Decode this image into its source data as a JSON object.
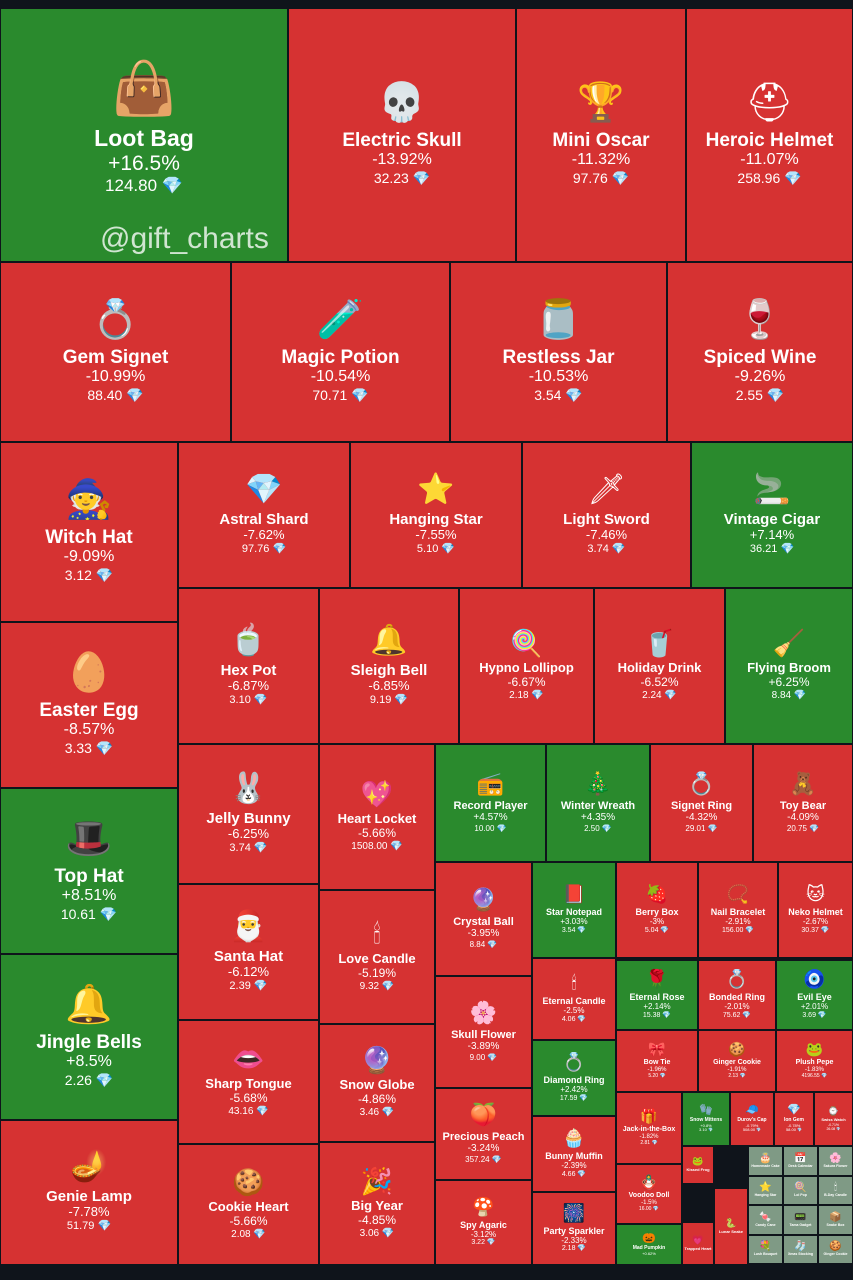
{
  "watermark": "@gift_charts",
  "currency_icon": "💎",
  "colors": {
    "up": "#2a8a2d",
    "down": "#d63232",
    "small": "#7f9a85",
    "background": "#0f141b"
  },
  "chart_data": {
    "type": "treemap",
    "items": [
      {
        "name": "Loot Bag",
        "change": "+16.5%",
        "price": "124.80",
        "icon": "👜"
      },
      {
        "name": "Electric Skull",
        "change": "-13.92%",
        "price": "32.23",
        "icon": "💀"
      },
      {
        "name": "Mini Oscar",
        "change": "-11.32%",
        "price": "97.76",
        "icon": "🏆"
      },
      {
        "name": "Heroic Helmet",
        "change": "-11.07%",
        "price": "258.96",
        "icon": "⛑"
      },
      {
        "name": "Gem Signet",
        "change": "-10.99%",
        "price": "88.40",
        "icon": "💍"
      },
      {
        "name": "Magic Potion",
        "change": "-10.54%",
        "price": "70.71",
        "icon": "🧪"
      },
      {
        "name": "Restless Jar",
        "change": "-10.53%",
        "price": "3.54",
        "icon": "🫙"
      },
      {
        "name": "Spiced Wine",
        "change": "-9.26%",
        "price": "2.55",
        "icon": "🍷"
      },
      {
        "name": "Witch Hat",
        "change": "-9.09%",
        "price": "3.12",
        "icon": "🧙"
      },
      {
        "name": "Astral Shard",
        "change": "-7.62%",
        "price": "97.76",
        "icon": "💎"
      },
      {
        "name": "Hanging Star",
        "change": "-7.55%",
        "price": "5.10",
        "icon": "⭐"
      },
      {
        "name": "Light Sword",
        "change": "-7.46%",
        "price": "3.74",
        "icon": "🗡"
      },
      {
        "name": "Vintage Cigar",
        "change": "+7.14%",
        "price": "36.21",
        "icon": "🚬"
      },
      {
        "name": "Easter Egg",
        "change": "-8.57%",
        "price": "3.33",
        "icon": "🥚"
      },
      {
        "name": "Hex Pot",
        "change": "-6.87%",
        "price": "3.10",
        "icon": "🍵"
      },
      {
        "name": "Sleigh Bell",
        "change": "-6.85%",
        "price": "9.19",
        "icon": "🔔"
      },
      {
        "name": "Hypno Lollipop",
        "change": "-6.67%",
        "price": "2.18",
        "icon": "🍭"
      },
      {
        "name": "Holiday Drink",
        "change": "-6.52%",
        "price": "2.24",
        "icon": "🥤"
      },
      {
        "name": "Flying Broom",
        "change": "+6.25%",
        "price": "8.84",
        "icon": "🧹"
      },
      {
        "name": "Top Hat",
        "change": "+8.51%",
        "price": "10.61",
        "icon": "🎩"
      },
      {
        "name": "Jelly Bunny",
        "change": "-6.25%",
        "price": "3.74",
        "icon": "🐰"
      },
      {
        "name": "Heart Locket",
        "change": "-5.66%",
        "price": "1508.00",
        "icon": "💖"
      },
      {
        "name": "Record Player",
        "change": "+4.57%",
        "price": "10.00",
        "icon": "📻"
      },
      {
        "name": "Winter Wreath",
        "change": "+4.35%",
        "price": "2.50",
        "icon": "🎄"
      },
      {
        "name": "Signet Ring",
        "change": "-4.32%",
        "price": "29.01",
        "icon": "💍"
      },
      {
        "name": "Toy Bear",
        "change": "-4.09%",
        "price": "20.75",
        "icon": "🧸"
      },
      {
        "name": "Jingle Bells",
        "change": "+8.5%",
        "price": "2.26",
        "icon": "🔔"
      },
      {
        "name": "Santa Hat",
        "change": "-6.12%",
        "price": "2.39",
        "icon": "🎅"
      },
      {
        "name": "Love Candle",
        "change": "-5.19%",
        "price": "9.32",
        "icon": "🕯"
      },
      {
        "name": "Crystal Ball",
        "change": "-3.95%",
        "price": "8.84",
        "icon": "🔮"
      },
      {
        "name": "Star Notepad",
        "change": "+3.03%",
        "price": "3.54",
        "icon": "📕"
      },
      {
        "name": "Berry Box",
        "change": "-3%",
        "price": "5.04",
        "icon": "🍓"
      },
      {
        "name": "Nail Bracelet",
        "change": "-2.91%",
        "price": "156.00",
        "icon": "📿"
      },
      {
        "name": "Neko Helmet",
        "change": "-2.67%",
        "price": "30.37",
        "icon": "🐱"
      },
      {
        "name": "Eternal Candle",
        "change": "-2.5%",
        "price": "4.06",
        "icon": "🕯"
      },
      {
        "name": "Eternal Rose",
        "change": "+2.14%",
        "price": "15.38",
        "icon": "🌹"
      },
      {
        "name": "Bonded Ring",
        "change": "-2.01%",
        "price": "75.62",
        "icon": "💍"
      },
      {
        "name": "Evil Eye",
        "change": "+2.01%",
        "price": "3.69",
        "icon": "🧿"
      },
      {
        "name": "Skull Flower",
        "change": "-3.89%",
        "price": "9.00",
        "icon": "🌸"
      },
      {
        "name": "Diamond Ring",
        "change": "+2.42%",
        "price": "17.59",
        "icon": "💍"
      },
      {
        "name": "Bow Tie",
        "change": "-1.96%",
        "price": "5.20",
        "icon": "🎀"
      },
      {
        "name": "Ginger Cookie",
        "change": "-1.91%",
        "price": "2.13",
        "icon": "🍪"
      },
      {
        "name": "Plush Pepe",
        "change": "-1.83%",
        "price": "4196.55",
        "icon": "🐸"
      },
      {
        "name": "Sharp Tongue",
        "change": "-5.68%",
        "price": "43.16",
        "icon": "👄"
      },
      {
        "name": "Snow Globe",
        "change": "-4.86%",
        "price": "3.46",
        "icon": "🔮"
      },
      {
        "name": "Precious Peach",
        "change": "-3.24%",
        "price": "357.24",
        "icon": "🍑"
      },
      {
        "name": "Jack-in-the-Box",
        "change": "-1.82%",
        "price": "2.81",
        "icon": "🎁"
      },
      {
        "name": "Snow Mittens",
        "change": "+0.8%",
        "price": "3.10",
        "icon": "🧤"
      },
      {
        "name": "Durov's Cap",
        "change": "-0.79%",
        "price": "508.00",
        "icon": "🧢"
      },
      {
        "name": "Ion Gem",
        "change": "-0.78%",
        "price": "58.00",
        "icon": "💎"
      },
      {
        "name": "Swiss Watch",
        "change": "-0.71%",
        "price": "26.08",
        "icon": "⌚"
      },
      {
        "name": "Genie Lamp",
        "change": "-7.78%",
        "price": "51.79",
        "icon": "🪔"
      },
      {
        "name": "Cookie Heart",
        "change": "-5.66%",
        "price": "2.08",
        "icon": "🍪"
      },
      {
        "name": "Big Year",
        "change": "-4.85%",
        "price": "3.06",
        "icon": "🎉"
      },
      {
        "name": "Bunny Muffin",
        "change": "-2.39%",
        "price": "4.66",
        "icon": "🧁"
      },
      {
        "name": "Voodoo Doll",
        "change": "-1.5%",
        "price": "16.00",
        "icon": "🪆"
      },
      {
        "name": "Kissed Frog",
        "change": "",
        "price": "",
        "icon": "🐸"
      },
      {
        "name": "Spy Agaric",
        "change": "-3.12%",
        "price": "3.22",
        "icon": "🍄"
      },
      {
        "name": "Party Sparkler",
        "change": "-2.33%",
        "price": "2.18",
        "icon": "🎆"
      },
      {
        "name": "Mad Pumpkin",
        "change": "+0.62%",
        "price": "",
        "icon": "🎃"
      },
      {
        "name": "Trapped Heart",
        "change": "",
        "price": "",
        "icon": "💗"
      },
      {
        "name": "Lunar Snake",
        "change": "",
        "price": "",
        "icon": "🐍"
      }
    ],
    "small_tiles": [
      {
        "name": "Homemade Cake",
        "icon": "🎂"
      },
      {
        "name": "Desk Calendar",
        "icon": "📅"
      },
      {
        "name": "Sakura Flower",
        "icon": "🌸"
      },
      {
        "name": "Hanging Star",
        "icon": "⭐"
      },
      {
        "name": "Lol Pop",
        "icon": "🍭"
      },
      {
        "name": "B-Day Candle",
        "icon": "🕯"
      },
      {
        "name": "Candy Cane",
        "icon": "🍬"
      },
      {
        "name": "Tama Gadget",
        "icon": "📟"
      },
      {
        "name": "Snake Box",
        "icon": "📦"
      },
      {
        "name": "Lush Bouquet",
        "icon": "💐"
      },
      {
        "name": "Xmas Stocking",
        "icon": "🧦"
      },
      {
        "name": "Ginger Cookie",
        "icon": "🍪"
      }
    ]
  }
}
